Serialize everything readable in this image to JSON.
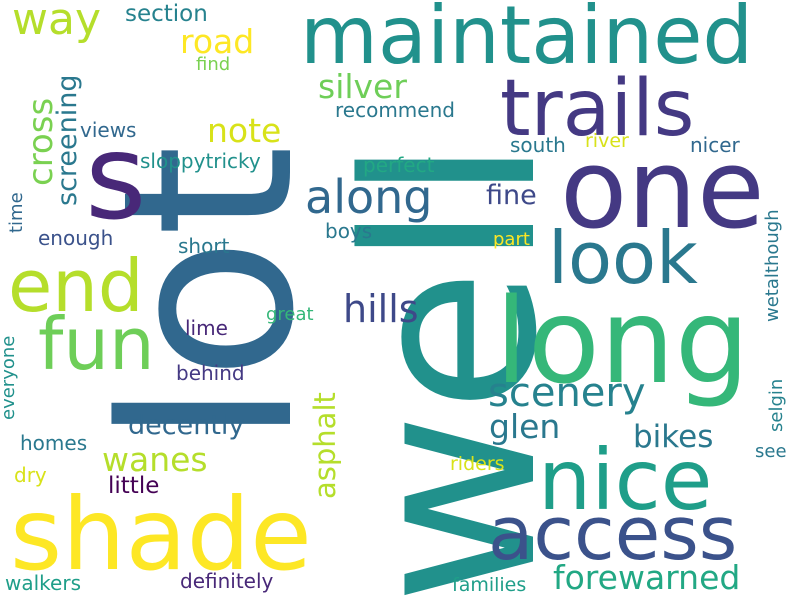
{
  "words": {
    "well": {
      "text": "well",
      "color": "#21918c"
    },
    "lot": {
      "text": "lot",
      "color": "#31688e"
    },
    "one": {
      "text": "one",
      "color": "#443983"
    },
    "long": {
      "text": "long",
      "color": "#35b779"
    },
    "shade": {
      "text": "shade",
      "color": "#fde725"
    },
    "maintained": {
      "text": "maintained",
      "color": "#21918c"
    },
    "trails": {
      "text": "trails",
      "color": "#443983"
    },
    "nice": {
      "text": "nice",
      "color": "#1f9e89"
    },
    "access": {
      "text": "access",
      "color": "#3b528b"
    },
    "s": {
      "text": "s",
      "color": "#482878"
    },
    "look": {
      "text": "look",
      "color": "#2a788e"
    },
    "end": {
      "text": "end",
      "color": "#b5de2b"
    },
    "fun": {
      "text": "fun",
      "color": "#6ece58"
    },
    "along": {
      "text": "along",
      "color": "#31688e"
    },
    "scenery": {
      "text": "scenery",
      "color": "#26828e"
    },
    "way": {
      "text": "way",
      "color": "#b5de2b"
    },
    "hills": {
      "text": "hills",
      "color": "#3e4989"
    },
    "forewarned": {
      "text": "forewarned",
      "color": "#22a884"
    },
    "silver": {
      "text": "silver",
      "color": "#6ece58"
    },
    "note": {
      "text": "note",
      "color": "#d8e219"
    },
    "road": {
      "text": "road",
      "color": "#fde725"
    },
    "cross": {
      "text": "cross",
      "color": "#7ad151"
    },
    "screening": {
      "text": "screening",
      "color": "#2a788e"
    },
    "asphalt": {
      "text": "asphalt",
      "color": "#b5de2b"
    },
    "glen": {
      "text": "glen",
      "color": "#2a788e"
    },
    "bikes": {
      "text": "bikes",
      "color": "#2a788e"
    },
    "wanes": {
      "text": "wanes",
      "color": "#b5de2b"
    },
    "decently": {
      "text": "decently",
      "color": "#31688e"
    },
    "fine": {
      "text": "fine",
      "color": "#3e4989"
    },
    "section": {
      "text": "section",
      "color": "#26828e"
    },
    "little": {
      "text": "little",
      "color": "#440154"
    },
    "sloppytricky": {
      "text": "sloppytricky",
      "color": "#21918c"
    },
    "recommend": {
      "text": "recommend",
      "color": "#2a788e"
    },
    "perfect": {
      "text": "perfect",
      "color": "#22a884"
    },
    "south": {
      "text": "south",
      "color": "#2a788e"
    },
    "river": {
      "text": "river",
      "color": "#d8e219"
    },
    "nicer": {
      "text": "nicer",
      "color": "#31688e"
    },
    "views": {
      "text": "views",
      "color": "#31688e"
    },
    "find": {
      "text": "find",
      "color": "#7ad151"
    },
    "enough": {
      "text": "enough",
      "color": "#3b528b"
    },
    "short": {
      "text": "short",
      "color": "#2a788e"
    },
    "boys": {
      "text": "boys",
      "color": "#2a788e"
    },
    "part": {
      "text": "part",
      "color": "#fde725"
    },
    "wetalthough": {
      "text": "wetalthough",
      "color": "#2a788e"
    },
    "time": {
      "text": "time",
      "color": "#31688e"
    },
    "lime": {
      "text": "lime",
      "color": "#482878"
    },
    "great": {
      "text": "great",
      "color": "#35b779"
    },
    "behind": {
      "text": "behind",
      "color": "#443983"
    },
    "everyone": {
      "text": "everyone",
      "color": "#21918c"
    },
    "homes": {
      "text": "homes",
      "color": "#2a788e"
    },
    "dry": {
      "text": "dry",
      "color": "#d8e219"
    },
    "riders": {
      "text": "riders",
      "color": "#d8e219"
    },
    "selgin": {
      "text": "selgin",
      "color": "#26828e"
    },
    "see": {
      "text": "see",
      "color": "#2a788e"
    },
    "walkers": {
      "text": "walkers",
      "color": "#1f9e89"
    },
    "definitely": {
      "text": "definitely",
      "color": "#482878"
    },
    "families": {
      "text": "families",
      "color": "#1f9e89"
    }
  }
}
